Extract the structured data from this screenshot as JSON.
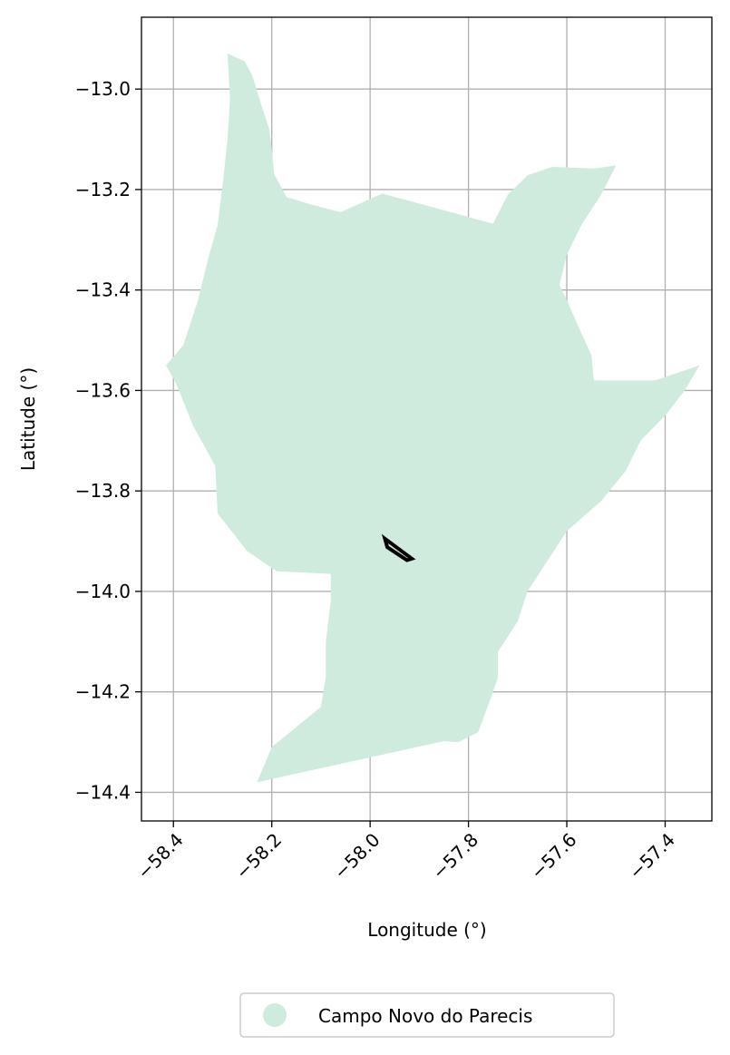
{
  "chart_data": {
    "type": "map",
    "title": "",
    "xlabel": "Longitude (°)",
    "ylabel": "Latitude (°)",
    "xlim": [
      -58.465,
      -57.305
    ],
    "ylim": [
      -14.457,
      -12.857
    ],
    "grid": true,
    "x_ticks": [
      -58.4,
      -58.2,
      -58.0,
      -57.8,
      -57.6,
      -57.4
    ],
    "y_ticks": [
      -13.0,
      -13.2,
      -13.4,
      -13.6,
      -13.8,
      -14.0,
      -14.2,
      -14.4
    ],
    "x_tick_labels": [
      "−58.4",
      "−58.2",
      "−58.0",
      "−57.8",
      "−57.6",
      "−57.4"
    ],
    "y_tick_labels": [
      "−13.0",
      "−13.2",
      "−13.4",
      "−13.6",
      "−13.8",
      "−14.0",
      "−14.2",
      "−14.4"
    ],
    "legend": {
      "placement": "bottom-center",
      "entries": [
        {
          "label": "Campo Novo do Parecis",
          "color": "#cfebdd"
        }
      ]
    },
    "region": {
      "name": "Campo Novo do Parecis",
      "color": "#cfebdd",
      "outline": [
        [
          -58.29,
          -12.929
        ],
        [
          -58.255,
          -12.945
        ],
        [
          -58.24,
          -12.972
        ],
        [
          -58.22,
          -13.035
        ],
        [
          -58.205,
          -13.08
        ],
        [
          -58.2,
          -13.12
        ],
        [
          -58.195,
          -13.17
        ],
        [
          -58.17,
          -13.215
        ],
        [
          -58.12,
          -13.23
        ],
        [
          -58.06,
          -13.245
        ],
        [
          -57.975,
          -13.208
        ],
        [
          -57.75,
          -13.268
        ],
        [
          -57.72,
          -13.21
        ],
        [
          -57.68,
          -13.172
        ],
        [
          -57.63,
          -13.155
        ],
        [
          -57.545,
          -13.158
        ],
        [
          -57.5,
          -13.152
        ],
        [
          -57.53,
          -13.21
        ],
        [
          -57.57,
          -13.27
        ],
        [
          -57.6,
          -13.33
        ],
        [
          -57.615,
          -13.39
        ],
        [
          -57.6,
          -13.42
        ],
        [
          -57.58,
          -13.465
        ],
        [
          -57.55,
          -13.53
        ],
        [
          -57.545,
          -13.58
        ],
        [
          -57.42,
          -13.58
        ],
        [
          -57.33,
          -13.55
        ],
        [
          -57.36,
          -13.6
        ],
        [
          -57.4,
          -13.65
        ],
        [
          -57.45,
          -13.7
        ],
        [
          -57.48,
          -13.76
        ],
        [
          -57.53,
          -13.82
        ],
        [
          -57.6,
          -13.88
        ],
        [
          -57.64,
          -13.94
        ],
        [
          -57.68,
          -14.0
        ],
        [
          -57.7,
          -14.06
        ],
        [
          -57.74,
          -14.12
        ],
        [
          -57.74,
          -14.17
        ],
        [
          -57.75,
          -14.2
        ],
        [
          -57.78,
          -14.28
        ],
        [
          -57.82,
          -14.3
        ],
        [
          -57.85,
          -14.298
        ],
        [
          -58.23,
          -14.38
        ],
        [
          -58.2,
          -14.31
        ],
        [
          -58.15,
          -14.27
        ],
        [
          -58.1,
          -14.23
        ],
        [
          -58.09,
          -14.17
        ],
        [
          -58.09,
          -14.1
        ],
        [
          -58.08,
          -14.02
        ],
        [
          -58.08,
          -13.965
        ],
        [
          -58.19,
          -13.96
        ],
        [
          -58.25,
          -13.92
        ],
        [
          -58.31,
          -13.845
        ],
        [
          -58.315,
          -13.75
        ],
        [
          -58.36,
          -13.67
        ],
        [
          -58.395,
          -13.585
        ],
        [
          -58.415,
          -13.55
        ],
        [
          -58.38,
          -13.51
        ],
        [
          -58.35,
          -13.42
        ],
        [
          -58.33,
          -13.34
        ],
        [
          -58.31,
          -13.27
        ],
        [
          -58.3,
          -13.19
        ],
        [
          -58.29,
          -13.1
        ],
        [
          -58.285,
          -13.02
        ]
      ]
    },
    "feature": {
      "outline": [
        [
          -57.97,
          -13.895
        ],
        [
          -57.915,
          -13.935
        ],
        [
          -57.925,
          -13.938
        ],
        [
          -57.965,
          -13.912
        ]
      ],
      "color": "#000000"
    }
  }
}
